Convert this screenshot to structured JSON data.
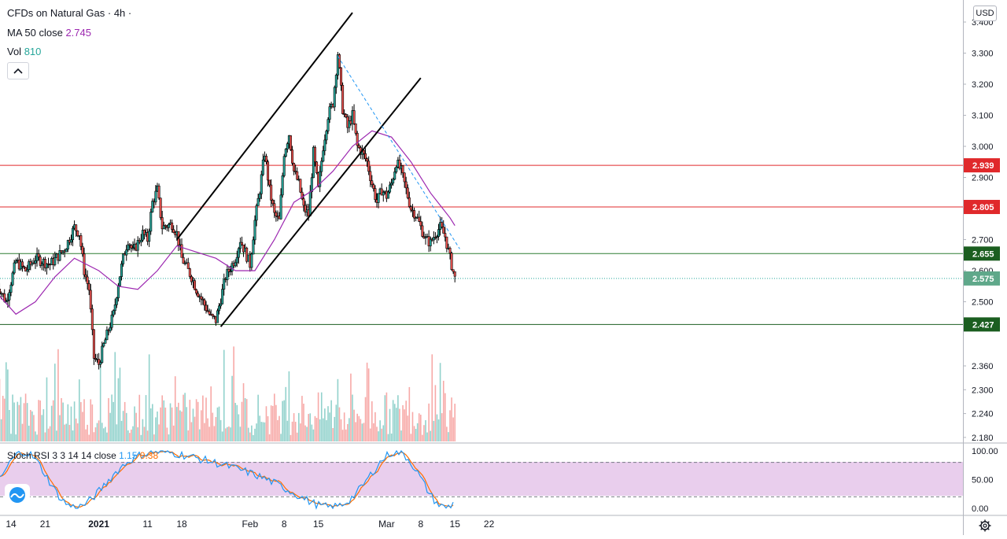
{
  "legend": {
    "symbol": "CFDs on Natural Gas · 4h ·",
    "ma_label": "MA 50 close",
    "ma_value": "2.745",
    "vol_label": "Vol",
    "vol_value": "810",
    "stoch_label": "Stoch RSI 3 3 14 14 close",
    "stoch_k": "1.15",
    "stoch_d": "0.38"
  },
  "currency": "USD",
  "colors": {
    "up": "#26a69a",
    "down": "#ef5350",
    "candle": "#000000",
    "ma": "#9c27b0",
    "stoch_k": "#2196f3",
    "stoch_d": "#ff6d00",
    "band": "#e1bee7",
    "resistance": "#e0292b",
    "support": "#1b5e20",
    "channel": "#000000",
    "trend_dash": "#2196f3"
  },
  "icons": [
    "chevron-up-icon",
    "tradingview-logo-icon",
    "gear-icon"
  ],
  "chart_data": [
    {
      "type": "candlestick",
      "title": "CFDs on Natural Gas · 4h",
      "y_axis_ticks": [
        "3.400",
        "3.300",
        "3.200",
        "3.100",
        "3.000",
        "2.900",
        "2.800",
        "2.700",
        "2.600",
        "2.500",
        "2.360",
        "2.300",
        "2.240",
        "2.180"
      ],
      "x_axis_ticks": [
        "14",
        "21",
        "2021",
        "11",
        "18",
        "Feb",
        "8",
        "15",
        "Mar",
        "8",
        "15",
        "22"
      ],
      "price_markers": [
        {
          "label": "2.939",
          "value": 2.939,
          "kind": "resistance"
        },
        {
          "label": "2.805",
          "value": 2.805,
          "kind": "resistance"
        },
        {
          "label": "2.655",
          "value": 2.655,
          "kind": "support"
        },
        {
          "label": "2.575",
          "value": 2.575,
          "kind": "last"
        },
        {
          "label": "2.427",
          "value": 2.427,
          "kind": "support-dark"
        }
      ],
      "price_path": [
        {
          "d": "2020-12-11",
          "v": 2.56
        },
        {
          "d": "2020-12-13",
          "v": 2.5
        },
        {
          "d": "2020-12-15",
          "v": 2.63
        },
        {
          "d": "2020-12-17",
          "v": 2.6
        },
        {
          "d": "2020-12-19",
          "v": 2.64
        },
        {
          "d": "2020-12-22",
          "v": 2.62
        },
        {
          "d": "2020-12-25",
          "v": 2.67
        },
        {
          "d": "2020-12-27",
          "v": 2.74
        },
        {
          "d": "2020-12-28",
          "v": 2.72
        },
        {
          "d": "2020-12-29",
          "v": 2.6
        },
        {
          "d": "2020-12-30",
          "v": 2.54
        },
        {
          "d": "2020-12-31",
          "v": 2.32
        },
        {
          "d": "2021-01-01",
          "v": 2.3
        },
        {
          "d": "2021-01-02",
          "v": 2.36
        },
        {
          "d": "2021-01-04",
          "v": 2.46
        },
        {
          "d": "2021-01-05",
          "v": 2.56
        },
        {
          "d": "2021-01-06",
          "v": 2.64
        },
        {
          "d": "2021-01-07",
          "v": 2.7
        },
        {
          "d": "2021-01-08",
          "v": 2.66
        },
        {
          "d": "2021-01-10",
          "v": 2.72
        },
        {
          "d": "2021-01-11",
          "v": 2.7
        },
        {
          "d": "2021-01-12",
          "v": 2.82
        },
        {
          "d": "2021-01-13",
          "v": 2.86
        },
        {
          "d": "2021-01-14",
          "v": 2.74
        },
        {
          "d": "2021-01-16",
          "v": 2.75
        },
        {
          "d": "2021-01-17",
          "v": 2.72
        },
        {
          "d": "2021-01-18",
          "v": 2.64
        },
        {
          "d": "2021-01-20",
          "v": 2.58
        },
        {
          "d": "2021-01-21",
          "v": 2.54
        },
        {
          "d": "2021-01-23",
          "v": 2.48
        },
        {
          "d": "2021-01-24",
          "v": 2.45
        },
        {
          "d": "2021-01-25",
          "v": 2.44
        },
        {
          "d": "2021-01-26",
          "v": 2.51
        },
        {
          "d": "2021-01-27",
          "v": 2.58
        },
        {
          "d": "2021-01-29",
          "v": 2.64
        },
        {
          "d": "2021-01-30",
          "v": 2.7
        },
        {
          "d": "2021-01-31",
          "v": 2.66
        },
        {
          "d": "2021-02-01",
          "v": 2.62
        },
        {
          "d": "2021-02-02",
          "v": 2.76
        },
        {
          "d": "2021-02-03",
          "v": 2.86
        },
        {
          "d": "2021-02-04",
          "v": 2.98
        },
        {
          "d": "2021-02-05",
          "v": 2.86
        },
        {
          "d": "2021-02-06",
          "v": 2.78
        },
        {
          "d": "2021-02-07",
          "v": 2.76
        },
        {
          "d": "2021-02-08",
          "v": 2.98
        },
        {
          "d": "2021-02-09",
          "v": 3.04
        },
        {
          "d": "2021-02-10",
          "v": 2.92
        },
        {
          "d": "2021-02-11",
          "v": 2.88
        },
        {
          "d": "2021-02-12",
          "v": 2.8
        },
        {
          "d": "2021-02-13",
          "v": 2.78
        },
        {
          "d": "2021-02-14",
          "v": 2.98
        },
        {
          "d": "2021-02-15",
          "v": 2.86
        },
        {
          "d": "2021-02-16",
          "v": 3.0
        },
        {
          "d": "2021-02-17",
          "v": 3.1
        },
        {
          "d": "2021-02-18",
          "v": 3.14
        },
        {
          "d": "2021-02-19",
          "v": 3.3
        },
        {
          "d": "2021-02-20",
          "v": 3.12
        },
        {
          "d": "2021-02-21",
          "v": 3.06
        },
        {
          "d": "2021-02-22",
          "v": 3.1
        },
        {
          "d": "2021-02-23",
          "v": 3.0
        },
        {
          "d": "2021-02-24",
          "v": 2.98
        },
        {
          "d": "2021-02-25",
          "v": 2.95
        },
        {
          "d": "2021-02-26",
          "v": 2.88
        },
        {
          "d": "2021-02-27",
          "v": 2.82
        },
        {
          "d": "2021-02-28",
          "v": 2.86
        },
        {
          "d": "2021-03-01",
          "v": 2.84
        },
        {
          "d": "2021-03-02",
          "v": 2.88
        },
        {
          "d": "2021-03-03",
          "v": 2.95
        },
        {
          "d": "2021-03-04",
          "v": 2.92
        },
        {
          "d": "2021-03-05",
          "v": 2.86
        },
        {
          "d": "2021-03-06",
          "v": 2.8
        },
        {
          "d": "2021-03-07",
          "v": 2.78
        },
        {
          "d": "2021-03-08",
          "v": 2.74
        },
        {
          "d": "2021-03-09",
          "v": 2.7
        },
        {
          "d": "2021-03-10",
          "v": 2.69
        },
        {
          "d": "2021-03-11",
          "v": 2.72
        },
        {
          "d": "2021-03-12",
          "v": 2.74
        },
        {
          "d": "2021-03-13",
          "v": 2.71
        },
        {
          "d": "2021-03-14",
          "v": 2.64
        },
        {
          "d": "2021-03-15",
          "v": 2.575
        }
      ],
      "ma50_path": [
        {
          "d": "2020-12-11",
          "v": 2.53
        },
        {
          "d": "2020-12-15",
          "v": 2.46
        },
        {
          "d": "2020-12-19",
          "v": 2.5
        },
        {
          "d": "2020-12-23",
          "v": 2.58
        },
        {
          "d": "2020-12-27",
          "v": 2.64
        },
        {
          "d": "2021-01-01",
          "v": 2.6
        },
        {
          "d": "2021-01-05",
          "v": 2.55
        },
        {
          "d": "2021-01-09",
          "v": 2.54
        },
        {
          "d": "2021-01-13",
          "v": 2.6
        },
        {
          "d": "2021-01-17",
          "v": 2.68
        },
        {
          "d": "2021-01-21",
          "v": 2.66
        },
        {
          "d": "2021-01-25",
          "v": 2.64
        },
        {
          "d": "2021-01-29",
          "v": 2.6
        },
        {
          "d": "2021-02-02",
          "v": 2.6
        },
        {
          "d": "2021-02-06",
          "v": 2.7
        },
        {
          "d": "2021-02-10",
          "v": 2.82
        },
        {
          "d": "2021-02-14",
          "v": 2.86
        },
        {
          "d": "2021-02-18",
          "v": 2.92
        },
        {
          "d": "2021-02-22",
          "v": 3.0
        },
        {
          "d": "2021-02-26",
          "v": 3.05
        },
        {
          "d": "2021-03-02",
          "v": 3.03
        },
        {
          "d": "2021-03-06",
          "v": 2.95
        },
        {
          "d": "2021-03-10",
          "v": 2.85
        },
        {
          "d": "2021-03-14",
          "v": 2.77
        },
        {
          "d": "2021-03-15",
          "v": 2.745
        }
      ],
      "channel_upper": [
        {
          "d": "2021-01-17",
          "v": 2.7
        },
        {
          "d": "2021-02-22",
          "v": 3.43
        }
      ],
      "channel_lower": [
        {
          "d": "2021-01-26",
          "v": 2.42
        },
        {
          "d": "2021-03-08",
          "v": 3.22
        }
      ],
      "trend_dashed": [
        {
          "d": "2021-02-19",
          "v": 3.29
        },
        {
          "d": "2021-03-16",
          "v": 2.67
        }
      ],
      "stoch_rsi": {
        "levels": [
          100,
          80,
          50,
          20,
          0
        ],
        "tick_labels": [
          "100.00",
          "50.00",
          "0.00"
        ],
        "k_last": 1.15,
        "d_last": 0.38
      }
    }
  ]
}
